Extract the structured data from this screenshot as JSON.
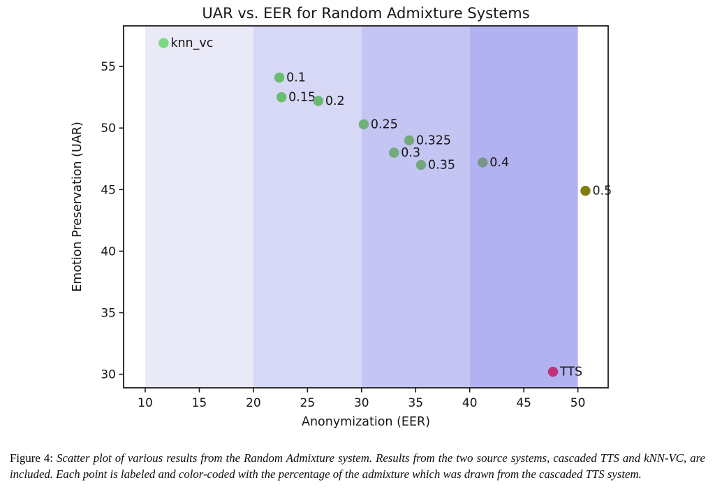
{
  "chart_data": {
    "type": "scatter",
    "title": "UAR vs. EER for Random Admixture Systems",
    "xlabel": "Anonymization (EER)",
    "ylabel": "Emotion Preservation (UAR)",
    "xlim": [
      8.0,
      52.8
    ],
    "ylim": [
      28.9,
      58.3
    ],
    "x_ticks": [
      10,
      15,
      20,
      25,
      30,
      35,
      40,
      45,
      50
    ],
    "y_ticks": [
      30,
      35,
      40,
      45,
      50,
      55
    ],
    "grid": false,
    "legend": "none",
    "frame_color": "#1c1c1c",
    "background_bands": [
      {
        "x_start": 10,
        "x_end": 20,
        "color": "#e9e9f8"
      },
      {
        "x_start": 20,
        "x_end": 30,
        "color": "#d7d7f6"
      },
      {
        "x_start": 30,
        "x_end": 40,
        "color": "#c5c5f4"
      },
      {
        "x_start": 40,
        "x_end": 50,
        "color": "#b2b2f1"
      }
    ],
    "points": [
      {
        "label": "knn_vc",
        "x": 11.7,
        "y": 56.9,
        "color": "#7cd87f"
      },
      {
        "label": "0.1",
        "x": 22.4,
        "y": 54.1,
        "color": "#68be6e"
      },
      {
        "label": "0.15",
        "x": 22.6,
        "y": 52.5,
        "color": "#68be6e"
      },
      {
        "label": "0.2",
        "x": 26.0,
        "y": 52.2,
        "color": "#6ab972"
      },
      {
        "label": "0.25",
        "x": 30.2,
        "y": 50.3,
        "color": "#6fb078"
      },
      {
        "label": "0.3",
        "x": 33.0,
        "y": 48.0,
        "color": "#72aa7a"
      },
      {
        "label": "0.325",
        "x": 34.4,
        "y": 49.0,
        "color": "#73a97b"
      },
      {
        "label": "0.35",
        "x": 35.5,
        "y": 47.0,
        "color": "#74a67d"
      },
      {
        "label": "0.4",
        "x": 41.2,
        "y": 47.2,
        "color": "#7b9489"
      },
      {
        "label": "0.5",
        "x": 50.7,
        "y": 44.9,
        "color": "#847c10"
      },
      {
        "label": "TTS",
        "x": 47.7,
        "y": 30.2,
        "color": "#c13178"
      }
    ]
  },
  "caption": {
    "prefix": "Figure 4:",
    "text": "Scatter plot of various results from the Random Admixture system. Results from the two source systems, cascaded TTS and kNN-VC, are included. Each point is labeled and color-coded with the percentage of the admixture which was drawn from the cascaded TTS system."
  }
}
